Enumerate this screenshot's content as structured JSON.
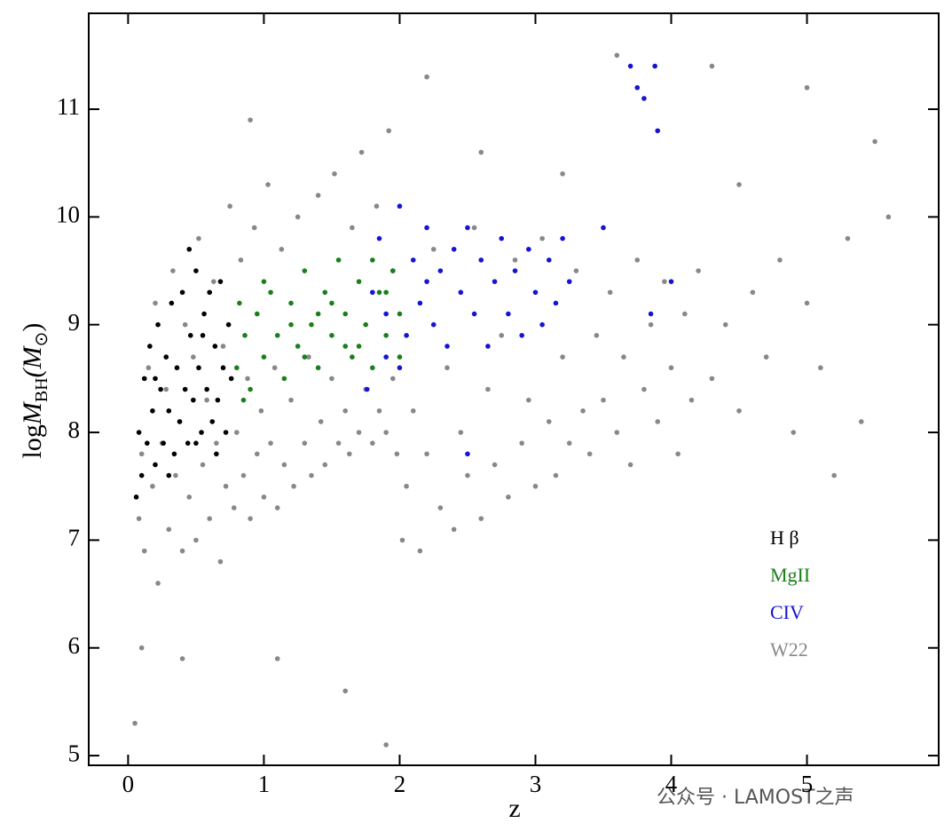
{
  "chart_data": {
    "type": "scatter",
    "xlabel": "z",
    "ylabel": [
      "log",
      "M",
      "BH",
      "(M",
      "⊙",
      ")"
    ],
    "xlim": [
      -0.29,
      5.97
    ],
    "ylim": [
      4.91,
      11.89
    ],
    "xticks": [
      0,
      1,
      2,
      3,
      4,
      5
    ],
    "yticks": [
      5,
      6,
      7,
      8,
      9,
      10,
      11
    ],
    "legend": "lower right",
    "watermark": "公众号 · LAMOST之声",
    "series": [
      {
        "name": "H β",
        "color": "#000000",
        "x": [
          0.06,
          0.08,
          0.1,
          0.12,
          0.14,
          0.16,
          0.18,
          0.2,
          0.22,
          0.24,
          0.26,
          0.28,
          0.3,
          0.32,
          0.34,
          0.36,
          0.38,
          0.4,
          0.42,
          0.44,
          0.46,
          0.48,
          0.5,
          0.52,
          0.54,
          0.56,
          0.58,
          0.6,
          0.62,
          0.64,
          0.66,
          0.68,
          0.7,
          0.72,
          0.74,
          0.76,
          0.3,
          0.5,
          0.2,
          0.45,
          0.55,
          0.65
        ],
        "y": [
          7.4,
          8.0,
          7.6,
          8.5,
          7.9,
          8.8,
          8.2,
          7.7,
          9.0,
          8.4,
          7.9,
          8.7,
          8.2,
          9.2,
          7.8,
          8.6,
          8.1,
          9.3,
          8.4,
          7.9,
          8.9,
          8.3,
          9.5,
          8.6,
          8.0,
          9.1,
          8.4,
          9.3,
          8.1,
          8.8,
          8.3,
          9.4,
          8.6,
          8.0,
          9.0,
          8.5,
          7.6,
          7.9,
          8.5,
          9.7,
          8.9,
          7.8
        ]
      },
      {
        "name": "MgII",
        "color": "#1a7f1a",
        "x": [
          0.8,
          0.82,
          0.86,
          0.9,
          0.95,
          1.0,
          1.05,
          1.1,
          1.15,
          1.2,
          1.25,
          1.3,
          1.35,
          1.4,
          1.45,
          1.5,
          1.55,
          1.6,
          1.65,
          1.7,
          1.75,
          1.8,
          1.85,
          1.9,
          1.95,
          2.0,
          1.3,
          1.5,
          1.7,
          1.9,
          1.2,
          1.4,
          1.6,
          1.8,
          2.0,
          1.0,
          0.85
        ],
        "y": [
          8.6,
          9.2,
          8.9,
          8.4,
          9.1,
          8.7,
          9.3,
          8.9,
          8.5,
          9.2,
          8.8,
          9.5,
          9.0,
          8.6,
          9.3,
          8.9,
          9.6,
          9.1,
          8.7,
          9.4,
          9.0,
          8.6,
          9.3,
          8.9,
          9.5,
          9.1,
          8.7,
          9.2,
          8.8,
          9.3,
          9.0,
          9.1,
          8.8,
          9.6,
          8.7,
          9.4,
          8.3
        ]
      },
      {
        "name": "CIV",
        "color": "#1414d2",
        "x": [
          1.76,
          1.8,
          1.85,
          1.9,
          1.95,
          2.0,
          2.05,
          2.1,
          2.15,
          2.2,
          2.25,
          2.3,
          2.35,
          2.4,
          2.45,
          2.5,
          2.55,
          2.6,
          2.65,
          2.7,
          2.75,
          2.8,
          2.85,
          2.9,
          2.95,
          3.0,
          3.05,
          3.1,
          3.15,
          3.2,
          3.25,
          2.0,
          1.9,
          2.2,
          2.5,
          3.7,
          3.75,
          3.88,
          3.9,
          3.8,
          3.5,
          3.85,
          4.0
        ],
        "y": [
          8.4,
          9.3,
          9.8,
          8.7,
          9.5,
          10.1,
          8.9,
          9.6,
          9.2,
          9.9,
          9.0,
          9.5,
          8.8,
          9.7,
          9.3,
          9.9,
          9.1,
          9.6,
          8.8,
          9.4,
          9.8,
          9.1,
          9.5,
          8.9,
          9.7,
          9.3,
          9.0,
          9.6,
          9.2,
          9.8,
          9.4,
          8.6,
          9.1,
          9.4,
          7.8,
          11.4,
          11.2,
          11.4,
          10.8,
          11.1,
          9.9,
          9.1,
          9.4
        ]
      },
      {
        "name": "W22",
        "color": "#888888",
        "x": [
          0.08,
          0.1,
          0.12,
          0.15,
          0.18,
          0.2,
          0.22,
          0.25,
          0.28,
          0.3,
          0.33,
          0.35,
          0.38,
          0.4,
          0.42,
          0.45,
          0.48,
          0.5,
          0.52,
          0.55,
          0.58,
          0.6,
          0.63,
          0.65,
          0.68,
          0.7,
          0.72,
          0.75,
          0.78,
          0.8,
          0.83,
          0.85,
          0.88,
          0.9,
          0.93,
          0.95,
          0.98,
          1.0,
          1.03,
          1.05,
          1.08,
          1.1,
          1.13,
          1.15,
          1.2,
          1.22,
          1.25,
          1.3,
          1.33,
          1.35,
          1.4,
          1.42,
          1.45,
          1.5,
          1.52,
          1.55,
          1.6,
          1.63,
          1.65,
          1.7,
          1.72,
          1.75,
          1.8,
          1.83,
          1.85,
          1.9,
          1.92,
          1.95,
          1.98,
          2.02,
          2.05,
          2.1,
          2.15,
          2.2,
          2.25,
          2.3,
          2.35,
          2.4,
          2.45,
          2.5,
          2.55,
          2.6,
          2.65,
          2.7,
          2.75,
          2.8,
          2.85,
          2.9,
          2.95,
          3.0,
          3.05,
          3.1,
          3.15,
          3.2,
          3.25,
          3.3,
          3.35,
          3.4,
          3.45,
          3.5,
          3.55,
          3.6,
          3.65,
          3.7,
          3.75,
          3.8,
          3.85,
          3.9,
          3.95,
          4.0,
          4.05,
          4.1,
          4.15,
          4.2,
          4.3,
          4.4,
          4.5,
          4.6,
          4.7,
          4.8,
          4.9,
          5.0,
          5.1,
          5.2,
          5.3,
          5.4,
          5.5,
          5.6,
          4.3,
          3.6,
          5.0,
          2.2,
          1.1,
          1.9,
          1.6,
          0.05,
          0.1,
          0.4,
          4.5,
          3.2,
          0.9,
          2.6
        ],
        "y": [
          7.2,
          7.8,
          6.9,
          8.6,
          7.5,
          9.2,
          6.6,
          7.9,
          8.4,
          7.1,
          9.5,
          7.6,
          8.1,
          6.9,
          9.0,
          7.4,
          8.7,
          7.0,
          9.8,
          7.7,
          8.3,
          7.2,
          9.4,
          7.9,
          6.8,
          8.8,
          7.5,
          10.1,
          7.3,
          8.0,
          9.6,
          7.6,
          8.5,
          7.2,
          9.9,
          7.8,
          8.2,
          7.4,
          10.3,
          7.9,
          8.6,
          7.3,
          9.7,
          7.7,
          8.3,
          7.5,
          10.0,
          7.9,
          8.7,
          7.6,
          10.2,
          8.1,
          7.7,
          8.5,
          10.4,
          7.9,
          8.2,
          7.8,
          9.9,
          8.0,
          10.6,
          8.4,
          7.9,
          10.1,
          8.2,
          8.0,
          10.8,
          8.5,
          7.8,
          7.0,
          7.5,
          8.2,
          6.9,
          7.8,
          9.7,
          7.3,
          8.6,
          7.1,
          8.0,
          7.6,
          9.9,
          7.2,
          8.4,
          7.7,
          8.9,
          7.4,
          9.6,
          7.9,
          8.3,
          7.5,
          9.8,
          8.1,
          7.6,
          8.7,
          7.9,
          9.5,
          8.2,
          7.8,
          8.9,
          8.3,
          9.3,
          8.0,
          8.7,
          7.7,
          9.6,
          8.4,
          9.0,
          8.1,
          9.4,
          8.6,
          7.8,
          9.1,
          8.3,
          9.5,
          8.5,
          9.0,
          8.2,
          9.3,
          8.7,
          9.6,
          8.0,
          9.2,
          8.6,
          7.6,
          9.8,
          8.1,
          10.7,
          10.0,
          11.4,
          11.5,
          11.2,
          11.3,
          5.9,
          5.1,
          5.6,
          5.3,
          6.0,
          5.9,
          10.3,
          10.4,
          10.9,
          10.6
        ]
      }
    ]
  }
}
